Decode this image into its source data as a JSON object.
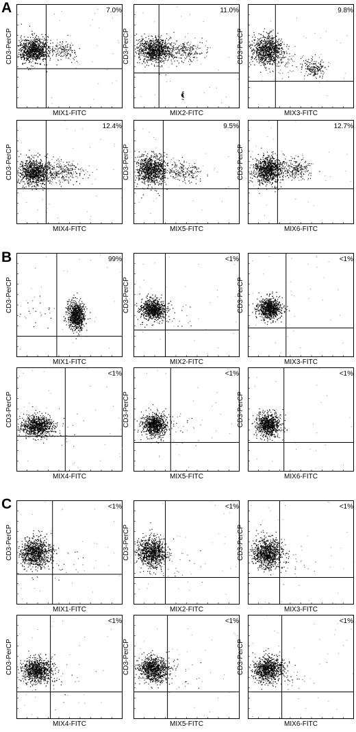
{
  "panel_labels": [
    "A",
    "B",
    "C"
  ],
  "chart_data": [
    {
      "type": "scatter",
      "panel": "A",
      "xlabel": "MIX1-FITC",
      "ylabel": "CD3-PerCP",
      "percent": "7.0%",
      "quadrant_x": 0.28,
      "quadrant_y": 0.62,
      "clusters": [
        {
          "x": 0.16,
          "y": 0.44,
          "sx": 0.075,
          "sy": 0.06,
          "n": 900,
          "density": 1.0
        },
        {
          "x": 0.44,
          "y": 0.44,
          "sx": 0.07,
          "sy": 0.045,
          "n": 150,
          "density": 0.6
        }
      ]
    },
    {
      "type": "scatter",
      "panel": "A",
      "xlabel": "MIX2-FITC",
      "ylabel": "CD3-PerCP",
      "percent": "11.0%",
      "quadrant_x": 0.24,
      "quadrant_y": 0.66,
      "clusters": [
        {
          "x": 0.2,
          "y": 0.44,
          "sx": 0.085,
          "sy": 0.06,
          "n": 900,
          "density": 1.0
        },
        {
          "x": 0.5,
          "y": 0.45,
          "sx": 0.09,
          "sy": 0.05,
          "n": 230,
          "density": 0.6
        },
        {
          "x": 0.46,
          "y": 0.87,
          "sx": 0.008,
          "sy": 0.02,
          "n": 25,
          "density": 1.0
        }
      ]
    },
    {
      "type": "scatter",
      "panel": "A",
      "xlabel": "MIX3-FITC",
      "ylabel": "CD3-PerCP",
      "percent": "9.8%",
      "quadrant_x": 0.26,
      "quadrant_y": 0.74,
      "clusters": [
        {
          "x": 0.18,
          "y": 0.44,
          "sx": 0.07,
          "sy": 0.07,
          "n": 850,
          "density": 1.0
        },
        {
          "x": 0.62,
          "y": 0.62,
          "sx": 0.05,
          "sy": 0.045,
          "n": 180,
          "density": 0.8
        },
        {
          "x": 0.36,
          "y": 0.56,
          "sx": 0.1,
          "sy": 0.08,
          "n": 60,
          "density": 0.3
        }
      ]
    },
    {
      "type": "scatter",
      "panel": "A",
      "xlabel": "MIX4-FITC",
      "ylabel": "CD3-PerCP",
      "percent": "12.4%",
      "quadrant_x": 0.28,
      "quadrant_y": 0.66,
      "clusters": [
        {
          "x": 0.17,
          "y": 0.5,
          "sx": 0.075,
          "sy": 0.06,
          "n": 900,
          "density": 1.0
        },
        {
          "x": 0.45,
          "y": 0.5,
          "sx": 0.1,
          "sy": 0.05,
          "n": 260,
          "density": 0.55
        }
      ]
    },
    {
      "type": "scatter",
      "panel": "A",
      "xlabel": "MIX5-FITC",
      "ylabel": "CD3-PerCP",
      "percent": "9.5%",
      "quadrant_x": 0.28,
      "quadrant_y": 0.66,
      "clusters": [
        {
          "x": 0.17,
          "y": 0.48,
          "sx": 0.07,
          "sy": 0.07,
          "n": 900,
          "density": 1.0
        },
        {
          "x": 0.47,
          "y": 0.49,
          "sx": 0.08,
          "sy": 0.05,
          "n": 200,
          "density": 0.55
        }
      ]
    },
    {
      "type": "scatter",
      "panel": "A",
      "xlabel": "MIX6-FITC",
      "ylabel": "CD3-PerCP",
      "percent": "12.7%",
      "quadrant_x": 0.28,
      "quadrant_y": 0.66,
      "clusters": [
        {
          "x": 0.19,
          "y": 0.48,
          "sx": 0.07,
          "sy": 0.065,
          "n": 900,
          "density": 1.0
        },
        {
          "x": 0.45,
          "y": 0.47,
          "sx": 0.07,
          "sy": 0.05,
          "n": 230,
          "density": 0.6
        }
      ]
    },
    {
      "type": "scatter",
      "panel": "B",
      "xlabel": "MIX1-FITC",
      "ylabel": "CD3-PerCP",
      "percent": "99%",
      "quadrant_x": 0.38,
      "quadrant_y": 0.8,
      "clusters": [
        {
          "x": 0.56,
          "y": 0.6,
          "sx": 0.04,
          "sy": 0.07,
          "n": 800,
          "density": 1.0
        },
        {
          "x": 0.18,
          "y": 0.55,
          "sx": 0.08,
          "sy": 0.06,
          "n": 25,
          "density": 0.4
        }
      ]
    },
    {
      "type": "scatter",
      "panel": "B",
      "xlabel": "MIX2-FITC",
      "ylabel": "CD3-PerCP",
      "percent": "<1%",
      "quadrant_x": 0.3,
      "quadrant_y": 0.74,
      "clusters": [
        {
          "x": 0.18,
          "y": 0.54,
          "sx": 0.06,
          "sy": 0.05,
          "n": 800,
          "density": 1.0
        },
        {
          "x": 0.4,
          "y": 0.58,
          "sx": 0.1,
          "sy": 0.08,
          "n": 20,
          "density": 0.3
        }
      ]
    },
    {
      "type": "scatter",
      "panel": "B",
      "xlabel": "MIX3-FITC",
      "ylabel": "CD3-PerCP",
      "percent": "<1%",
      "quadrant_x": 0.36,
      "quadrant_y": 0.72,
      "clusters": [
        {
          "x": 0.2,
          "y": 0.53,
          "sx": 0.055,
          "sy": 0.05,
          "n": 800,
          "density": 1.0
        }
      ]
    },
    {
      "type": "scatter",
      "panel": "B",
      "xlabel": "MIX4-FITC",
      "ylabel": "CD3-PerCP",
      "percent": "<1%",
      "quadrant_x": 0.46,
      "quadrant_y": 0.66,
      "clusters": [
        {
          "x": 0.2,
          "y": 0.56,
          "sx": 0.075,
          "sy": 0.05,
          "n": 850,
          "density": 1.0
        },
        {
          "x": 0.42,
          "y": 0.6,
          "sx": 0.12,
          "sy": 0.08,
          "n": 25,
          "density": 0.3
        }
      ]
    },
    {
      "type": "scatter",
      "panel": "B",
      "xlabel": "MIX5-FITC",
      "ylabel": "CD3-PerCP",
      "percent": "<1%",
      "quadrant_x": 0.35,
      "quadrant_y": 0.72,
      "clusters": [
        {
          "x": 0.2,
          "y": 0.55,
          "sx": 0.06,
          "sy": 0.055,
          "n": 800,
          "density": 1.0
        },
        {
          "x": 0.45,
          "y": 0.6,
          "sx": 0.12,
          "sy": 0.1,
          "n": 20,
          "density": 0.3
        }
      ]
    },
    {
      "type": "scatter",
      "panel": "B",
      "xlabel": "MIX6-FITC",
      "ylabel": "CD3-PerCP",
      "percent": "<1%",
      "quadrant_x": 0.34,
      "quadrant_y": 0.72,
      "clusters": [
        {
          "x": 0.19,
          "y": 0.55,
          "sx": 0.055,
          "sy": 0.055,
          "n": 800,
          "density": 1.0
        }
      ]
    },
    {
      "type": "scatter",
      "panel": "C",
      "xlabel": "MIX1-FITC",
      "ylabel": "CD3-PerCP",
      "percent": "<1%",
      "quadrant_x": 0.34,
      "quadrant_y": 0.71,
      "clusters": [
        {
          "x": 0.18,
          "y": 0.5,
          "sx": 0.07,
          "sy": 0.07,
          "n": 900,
          "density": 1.0
        },
        {
          "x": 0.44,
          "y": 0.6,
          "sx": 0.12,
          "sy": 0.1,
          "n": 20,
          "density": 0.3
        }
      ]
    },
    {
      "type": "scatter",
      "panel": "C",
      "xlabel": "MIX2-FITC",
      "ylabel": "CD3-PerCP",
      "percent": "<1%",
      "quadrant_x": 0.3,
      "quadrant_y": 0.74,
      "clusters": [
        {
          "x": 0.17,
          "y": 0.5,
          "sx": 0.07,
          "sy": 0.07,
          "n": 900,
          "density": 1.0
        },
        {
          "x": 0.44,
          "y": 0.6,
          "sx": 0.12,
          "sy": 0.1,
          "n": 20,
          "density": 0.3
        }
      ]
    },
    {
      "type": "scatter",
      "panel": "C",
      "xlabel": "MIX3-FITC",
      "ylabel": "CD3-PerCP",
      "percent": "<1%",
      "quadrant_x": 0.3,
      "quadrant_y": 0.74,
      "clusters": [
        {
          "x": 0.18,
          "y": 0.5,
          "sx": 0.07,
          "sy": 0.07,
          "n": 900,
          "density": 1.0
        },
        {
          "x": 0.44,
          "y": 0.6,
          "sx": 0.12,
          "sy": 0.1,
          "n": 20,
          "density": 0.3
        }
      ]
    },
    {
      "type": "scatter",
      "panel": "C",
      "xlabel": "MIX4-FITC",
      "ylabel": "CD3-PerCP",
      "percent": "<1%",
      "quadrant_x": 0.32,
      "quadrant_y": 0.74,
      "clusters": [
        {
          "x": 0.19,
          "y": 0.53,
          "sx": 0.07,
          "sy": 0.06,
          "n": 850,
          "density": 1.0
        },
        {
          "x": 0.44,
          "y": 0.6,
          "sx": 0.12,
          "sy": 0.1,
          "n": 20,
          "density": 0.3
        }
      ]
    },
    {
      "type": "scatter",
      "panel": "C",
      "xlabel": "MIX5-FITC",
      "ylabel": "CD3-PerCP",
      "percent": "<1%",
      "quadrant_x": 0.32,
      "quadrant_y": 0.74,
      "clusters": [
        {
          "x": 0.19,
          "y": 0.52,
          "sx": 0.07,
          "sy": 0.06,
          "n": 850,
          "density": 1.0
        },
        {
          "x": 0.44,
          "y": 0.6,
          "sx": 0.12,
          "sy": 0.1,
          "n": 20,
          "density": 0.3
        }
      ]
    },
    {
      "type": "scatter",
      "panel": "C",
      "xlabel": "MIX6-FITC",
      "ylabel": "CD3-PerCP",
      "percent": "<1%",
      "quadrant_x": 0.32,
      "quadrant_y": 0.74,
      "clusters": [
        {
          "x": 0.19,
          "y": 0.52,
          "sx": 0.07,
          "sy": 0.06,
          "n": 850,
          "density": 1.0
        },
        {
          "x": 0.44,
          "y": 0.6,
          "sx": 0.12,
          "sy": 0.1,
          "n": 20,
          "density": 0.3
        }
      ]
    }
  ]
}
